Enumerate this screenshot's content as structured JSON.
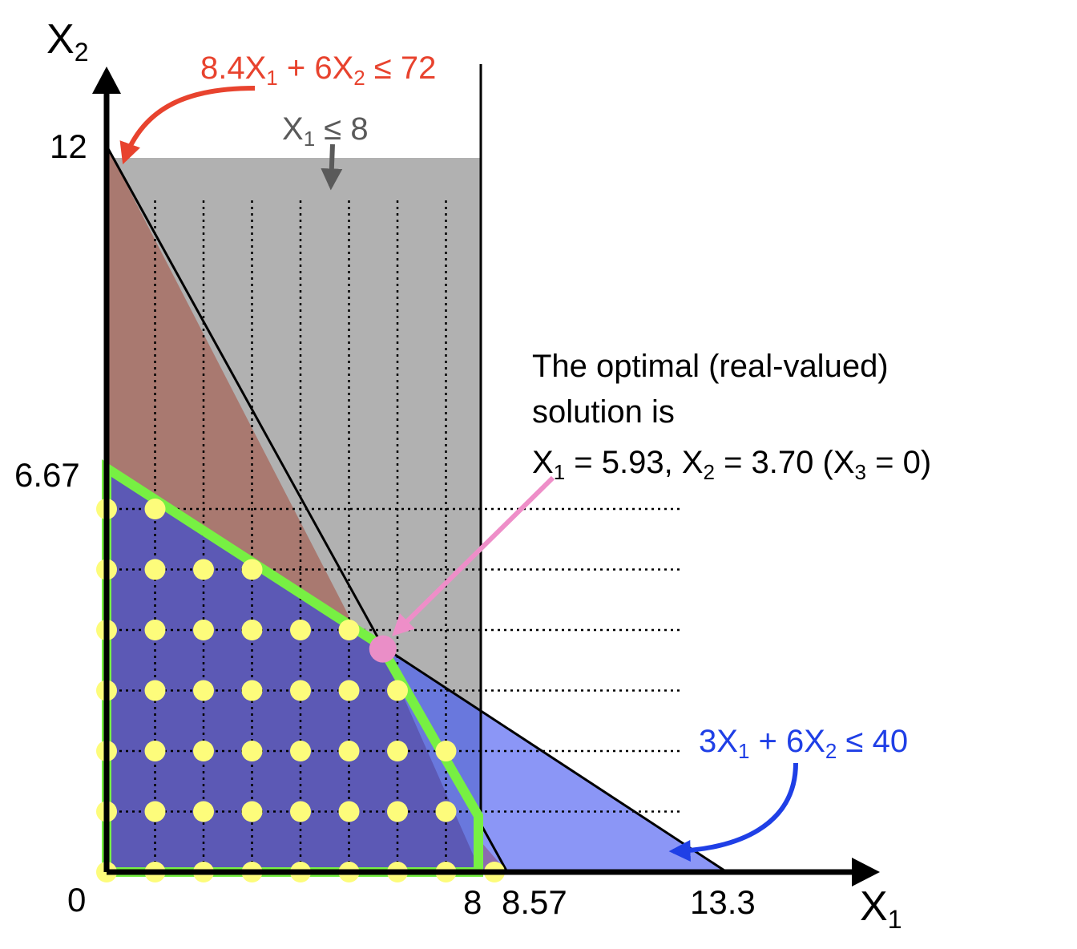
{
  "axes": {
    "x_label": "X",
    "x_label_sub": "1",
    "y_label": "X",
    "y_label_sub": "2",
    "x_ticks": [
      "0",
      "8",
      "8.57",
      "13.3"
    ],
    "y_ticks": [
      "12",
      "6.67"
    ]
  },
  "constraints": {
    "red": {
      "text_parts": [
        "8.4X",
        "1",
        " + 6X",
        "2",
        " ≤ 72"
      ],
      "color": "#e8432e"
    },
    "gray": {
      "text_parts": [
        "X",
        "1",
        " ≤ 8"
      ],
      "color": "#5a5a5a"
    },
    "blue": {
      "text_parts": [
        "3X",
        "1",
        " + 6X",
        "2",
        " ≤ 40"
      ],
      "color": "#1f3fe6"
    }
  },
  "optimal_note": {
    "line1": "The optimal (real-valued)",
    "line2": "solution is",
    "line3_parts": [
      "X",
      "1",
      " = 5.93, X",
      "2",
      " = 3.70 (X",
      "3",
      " = 0)"
    ]
  },
  "colors": {
    "gray_region": "#b1b1b1",
    "red_region": "#a97970",
    "blue_region": "#8b96f6",
    "blue_over_gray": "#6978dd",
    "feasible_fill": "#5c59b5",
    "feasible_border": "#77f043",
    "lattice_points": "#fdfc7b",
    "optimum_point": "#ea8ec7",
    "optimal_arrow": "#ee8ec8"
  },
  "lattice_points": [
    {
      "x": 0,
      "y": 0
    },
    {
      "x": 1,
      "y": 0
    },
    {
      "x": 2,
      "y": 0
    },
    {
      "x": 3,
      "y": 0
    },
    {
      "x": 4,
      "y": 0
    },
    {
      "x": 5,
      "y": 0
    },
    {
      "x": 6,
      "y": 0
    },
    {
      "x": 7,
      "y": 0
    },
    {
      "x": 8,
      "y": 0
    },
    {
      "x": 0,
      "y": 1
    },
    {
      "x": 1,
      "y": 1
    },
    {
      "x": 2,
      "y": 1
    },
    {
      "x": 3,
      "y": 1
    },
    {
      "x": 4,
      "y": 1
    },
    {
      "x": 5,
      "y": 1
    },
    {
      "x": 6,
      "y": 1
    },
    {
      "x": 7,
      "y": 1
    },
    {
      "x": 0,
      "y": 2
    },
    {
      "x": 1,
      "y": 2
    },
    {
      "x": 2,
      "y": 2
    },
    {
      "x": 3,
      "y": 2
    },
    {
      "x": 4,
      "y": 2
    },
    {
      "x": 5,
      "y": 2
    },
    {
      "x": 6,
      "y": 2
    },
    {
      "x": 7,
      "y": 2
    },
    {
      "x": 0,
      "y": 3
    },
    {
      "x": 1,
      "y": 3
    },
    {
      "x": 2,
      "y": 3
    },
    {
      "x": 3,
      "y": 3
    },
    {
      "x": 4,
      "y": 3
    },
    {
      "x": 5,
      "y": 3
    },
    {
      "x": 6,
      "y": 3
    },
    {
      "x": 0,
      "y": 4
    },
    {
      "x": 1,
      "y": 4
    },
    {
      "x": 2,
      "y": 4
    },
    {
      "x": 3,
      "y": 4
    },
    {
      "x": 4,
      "y": 4
    },
    {
      "x": 5,
      "y": 4
    },
    {
      "x": 0,
      "y": 5
    },
    {
      "x": 1,
      "y": 5
    },
    {
      "x": 2,
      "y": 5
    },
    {
      "x": 3,
      "y": 5
    },
    {
      "x": 0,
      "y": 6
    },
    {
      "x": 1,
      "y": 6
    }
  ],
  "optimum": {
    "x": 5.93,
    "y": 3.7
  }
}
